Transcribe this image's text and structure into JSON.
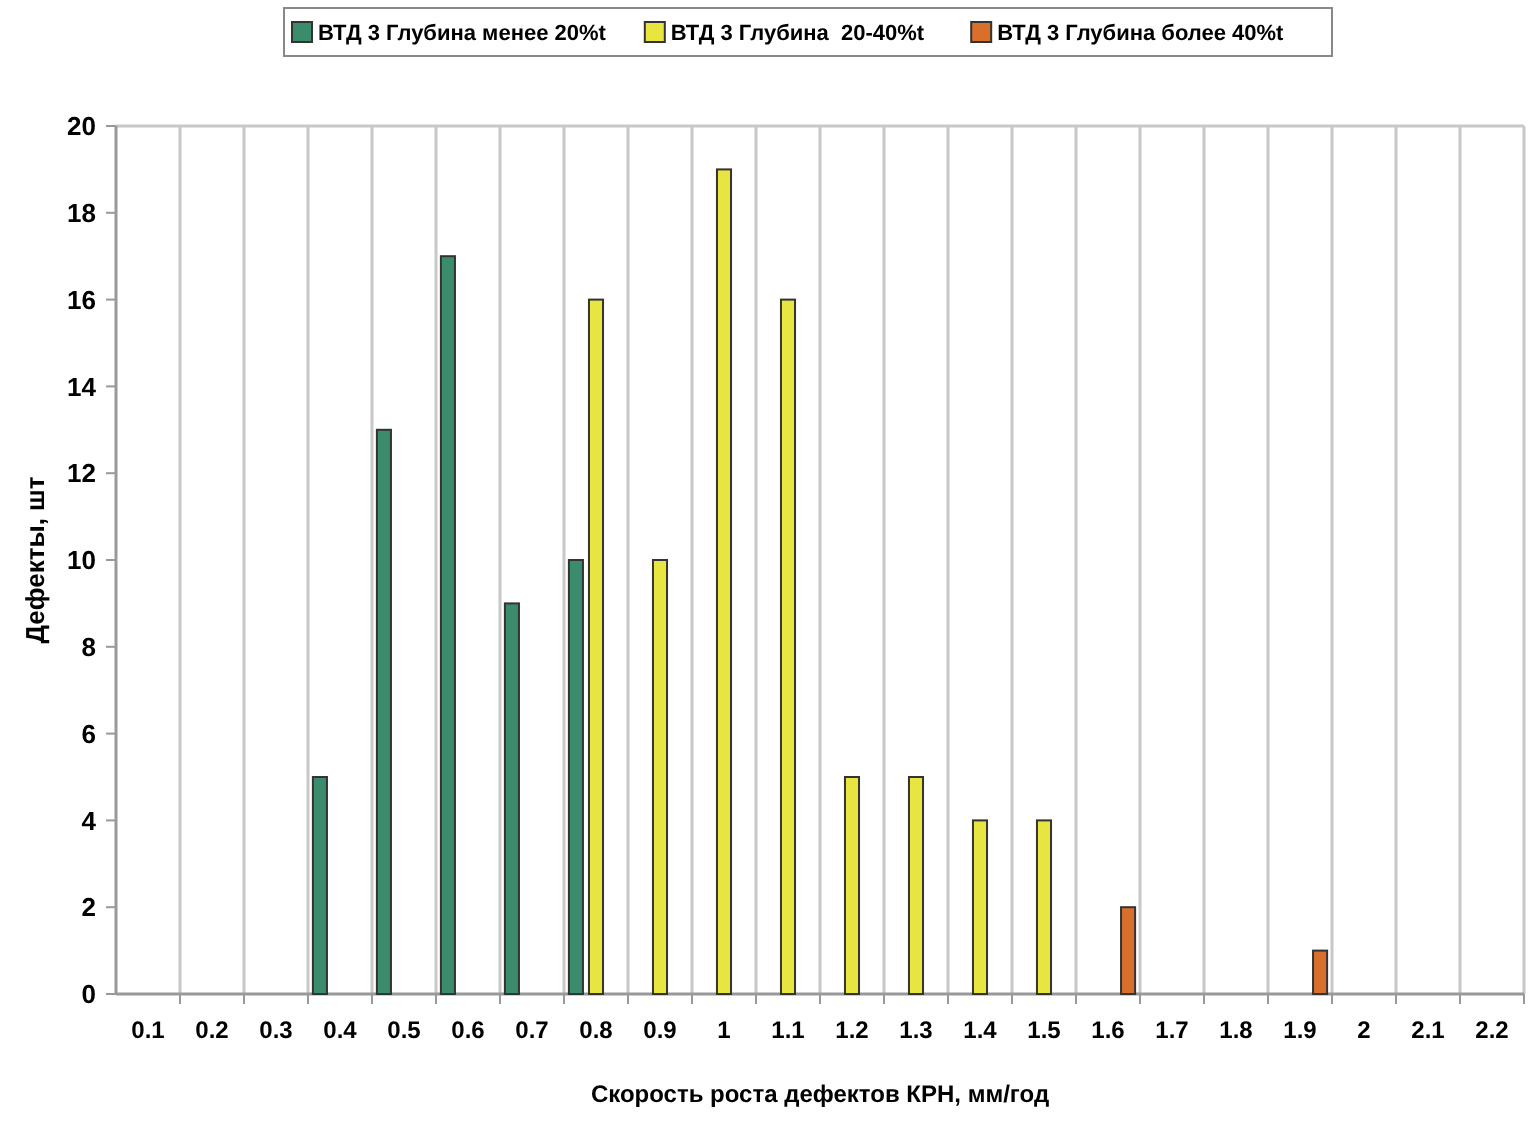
{
  "chart_data": {
    "type": "bar",
    "xlabel": "Скорость роста дефектов КРН, мм/год",
    "ylabel": "Дефекты, шт",
    "categories": [
      "0.1",
      "0.2",
      "0.3",
      "0.4",
      "0.5",
      "0.6",
      "0.7",
      "0.8",
      "0.9",
      "1",
      "1.1",
      "1.2",
      "1.3",
      "1.4",
      "1.5",
      "1.6",
      "1.7",
      "1.8",
      "1.9",
      "2",
      "2.1",
      "2.2"
    ],
    "series": [
      {
        "name": "ВТД 3 Глубина менее 20%t",
        "color": "#3a8c6c",
        "values": [
          null,
          null,
          null,
          5,
          13,
          17,
          9,
          10,
          null,
          null,
          null,
          null,
          null,
          null,
          null,
          null,
          null,
          null,
          null,
          null,
          null,
          null
        ]
      },
      {
        "name": "ВТД 3 Глубина  20-40%t",
        "color": "#e8e440",
        "values": [
          null,
          null,
          null,
          null,
          null,
          null,
          null,
          16,
          10,
          19,
          16,
          5,
          5,
          4,
          4,
          null,
          null,
          null,
          null,
          null,
          null,
          null
        ]
      },
      {
        "name": "ВТД 3 Глубина более 40%t",
        "color": "#d8702c",
        "values": [
          null,
          null,
          null,
          null,
          null,
          null,
          null,
          null,
          null,
          null,
          null,
          null,
          null,
          null,
          null,
          2,
          null,
          null,
          1,
          null,
          null,
          null
        ]
      }
    ],
    "ylim": [
      0,
      20
    ],
    "yticks": [
      0,
      2,
      4,
      6,
      8,
      10,
      12,
      14,
      16,
      18,
      20
    ],
    "grid": "x",
    "legend": "top"
  }
}
